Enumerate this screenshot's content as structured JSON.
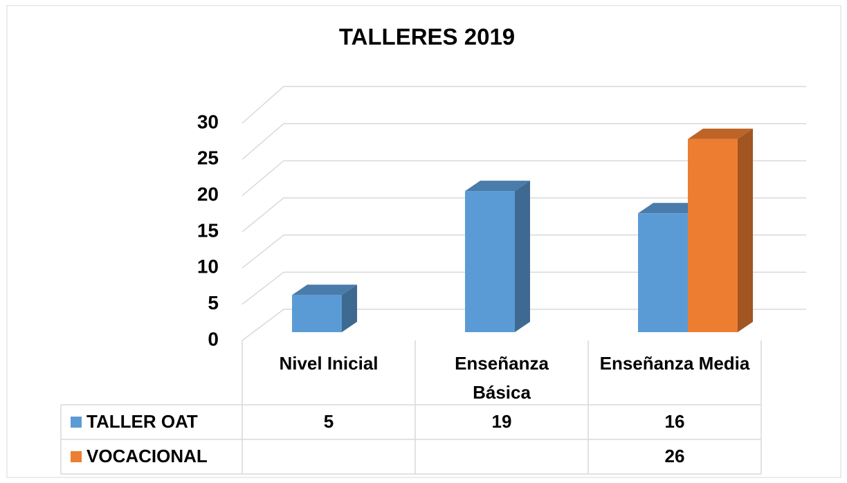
{
  "chart_data": {
    "type": "bar3d",
    "title": "TALLERES 2019",
    "categories": [
      "Nivel Inicial",
      "Enseñanza Básica",
      "Enseñanza Media"
    ],
    "series": [
      {
        "name": "TALLER OAT",
        "color": "#5b9bd5",
        "values": [
          5,
          19,
          16
        ]
      },
      {
        "name": "VOCACIONAL",
        "color": "#ed7d31",
        "values": [
          null,
          null,
          26
        ]
      }
    ],
    "ylim": [
      0,
      30
    ],
    "yticks": [
      0,
      5,
      10,
      15,
      20,
      25,
      30
    ],
    "grid": true,
    "data_table": true
  }
}
